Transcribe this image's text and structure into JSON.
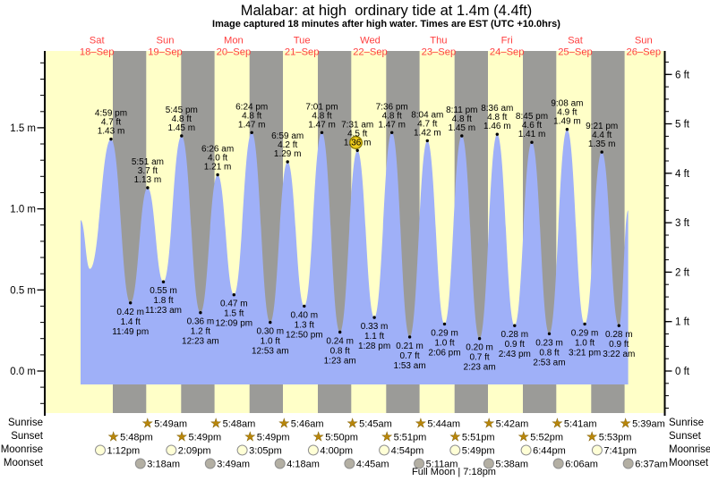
{
  "title": "Malabar: at high  ordinary tide at 1.4m (4.4ft)",
  "subtitle": "Image captured 18 minutes after high water. Times are EST (UTC +10.0hrs)",
  "colors": {
    "day_bg": "#ffffc8",
    "night_bg": "#9b9b98",
    "tide_fill": "#9fb0f8",
    "day_label": "#ff4040",
    "axis": "#000000",
    "star": "#b8860b",
    "star_outline": "#7a5a00",
    "moonrise_fill": "#ffffd6",
    "moonset_fill": "#b3afa3",
    "moon_stroke": "#8f8f8f",
    "marker_fill": "#f0cd1e",
    "marker_stroke": "#8e7d00"
  },
  "chart_data": {
    "type": "area",
    "title": "Malabar: at high  ordinary tide at 1.4m (4.4ft)",
    "x_days": [
      {
        "dow": "Sat",
        "date": "18–Sep"
      },
      {
        "dow": "Sun",
        "date": "19–Sep"
      },
      {
        "dow": "Mon",
        "date": "20–Sep"
      },
      {
        "dow": "Tue",
        "date": "21–Sep"
      },
      {
        "dow": "Wed",
        "date": "22–Sep"
      },
      {
        "dow": "Thu",
        "date": "23–Sep"
      },
      {
        "dow": "Fri",
        "date": "24–Sep"
      },
      {
        "dow": "Sat",
        "date": "25–Sep"
      },
      {
        "dow": "Sun",
        "date": "26–Sep"
      }
    ],
    "yticks_m": [
      0.0,
      0.5,
      1.0,
      1.5
    ],
    "yticks_ft": [
      0,
      1,
      2,
      3,
      4,
      5,
      6
    ],
    "ylim_m": [
      -0.26,
      1.97
    ],
    "grid": false,
    "tides": [
      {
        "day": 0,
        "time": "4:59 pm",
        "ft": "4.7 ft",
        "m": "1.43 m",
        "height_m": 1.43,
        "type": "high"
      },
      {
        "day": 0,
        "time": "11:49 pm",
        "ft": "1.4 ft",
        "m": "0.42 m",
        "height_m": 0.42,
        "type": "low"
      },
      {
        "day": 1,
        "time": "5:51 am",
        "ft": "3.7 ft",
        "m": "1.13 m",
        "height_m": 1.13,
        "type": "high"
      },
      {
        "day": 1,
        "time": "11:23 am",
        "ft": "1.8 ft",
        "m": "0.55 m",
        "height_m": 0.55,
        "type": "low"
      },
      {
        "day": 1,
        "time": "5:45 pm",
        "ft": "4.8 ft",
        "m": "1.45 m",
        "height_m": 1.45,
        "type": "high"
      },
      {
        "day": 2,
        "time": "12:23 am",
        "ft": "1.2 ft",
        "m": "0.36 m",
        "height_m": 0.36,
        "type": "low"
      },
      {
        "day": 2,
        "time": "6:26 am",
        "ft": "4.0 ft",
        "m": "1.21 m",
        "height_m": 1.21,
        "type": "high"
      },
      {
        "day": 2,
        "time": "12:09 pm",
        "ft": "1.5 ft",
        "m": "0.47 m",
        "height_m": 0.47,
        "type": "low"
      },
      {
        "day": 2,
        "time": "6:24 pm",
        "ft": "4.8 ft",
        "m": "1.47 m",
        "height_m": 1.47,
        "type": "high"
      },
      {
        "day": 3,
        "time": "12:53 am",
        "ft": "1.0 ft",
        "m": "0.30 m",
        "height_m": 0.3,
        "type": "low"
      },
      {
        "day": 3,
        "time": "6:59 am",
        "ft": "4.2 ft",
        "m": "1.29 m",
        "height_m": 1.29,
        "type": "high"
      },
      {
        "day": 3,
        "time": "12:50 pm",
        "ft": "1.3 ft",
        "m": "0.40 m",
        "height_m": 0.4,
        "type": "low"
      },
      {
        "day": 3,
        "time": "7:01 pm",
        "ft": "4.8 ft",
        "m": "1.47 m",
        "height_m": 1.47,
        "type": "high"
      },
      {
        "day": 4,
        "time": "1:23 am",
        "ft": "0.8 ft",
        "m": "0.24 m",
        "height_m": 0.24,
        "type": "low"
      },
      {
        "day": 4,
        "time": "7:31 am",
        "ft": "4.5 ft",
        "m": "1.36 m",
        "height_m": 1.36,
        "type": "high",
        "current": true
      },
      {
        "day": 4,
        "time": "1:28 pm",
        "ft": "1.1 ft",
        "m": "0.33 m",
        "height_m": 0.33,
        "type": "low"
      },
      {
        "day": 4,
        "time": "7:36 pm",
        "ft": "4.8 ft",
        "m": "1.47 m",
        "height_m": 1.47,
        "type": "high"
      },
      {
        "day": 5,
        "time": "1:53 am",
        "ft": "0.7 ft",
        "m": "0.21 m",
        "height_m": 0.21,
        "type": "low"
      },
      {
        "day": 5,
        "time": "8:04 am",
        "ft": "4.7 ft",
        "m": "1.42 m",
        "height_m": 1.42,
        "type": "high"
      },
      {
        "day": 5,
        "time": "2:06 pm",
        "ft": "1.0 ft",
        "m": "0.29 m",
        "height_m": 0.29,
        "type": "low"
      },
      {
        "day": 5,
        "time": "8:11 pm",
        "ft": "4.8 ft",
        "m": "1.45 m",
        "height_m": 1.45,
        "type": "high"
      },
      {
        "day": 6,
        "time": "2:23 am",
        "ft": "0.7 ft",
        "m": "0.20 m",
        "height_m": 0.2,
        "type": "low"
      },
      {
        "day": 6,
        "time": "8:36 am",
        "ft": "4.8 ft",
        "m": "1.46 m",
        "height_m": 1.46,
        "type": "high"
      },
      {
        "day": 6,
        "time": "2:43 pm",
        "ft": "0.9 ft",
        "m": "0.28 m",
        "height_m": 0.28,
        "type": "low"
      },
      {
        "day": 6,
        "time": "8:45 pm",
        "ft": "4.6 ft",
        "m": "1.41 m",
        "height_m": 1.41,
        "type": "high"
      },
      {
        "day": 7,
        "time": "2:53 am",
        "ft": "0.8 ft",
        "m": "0.23 m",
        "height_m": 0.23,
        "type": "low"
      },
      {
        "day": 7,
        "time": "9:08 am",
        "ft": "4.9 ft",
        "m": "1.49 m",
        "height_m": 1.49,
        "type": "high"
      },
      {
        "day": 7,
        "time": "3:21 pm",
        "ft": "1.0 ft",
        "m": "0.29 m",
        "height_m": 0.29,
        "type": "low"
      },
      {
        "day": 7,
        "time": "9:21 pm",
        "ft": "4.4 ft",
        "m": "1.35 m",
        "height_m": 1.35,
        "type": "high"
      },
      {
        "day": 8,
        "time": "3:22 am",
        "ft": "0.9 ft",
        "m": "0.28 m",
        "height_m": 0.28,
        "type": "low"
      }
    ],
    "curve_edge_points": [
      {
        "day": 0,
        "hour": 6.3,
        "height_m": 0.93
      },
      {
        "day": 0,
        "hour": 9.6,
        "height_m": 0.63
      },
      {
        "day": 8,
        "hour": 6.6,
        "height_m": 0.99
      }
    ]
  },
  "almanac": {
    "rows": [
      {
        "label": "Sunrise",
        "icon": "sun-star",
        "entries": [
          {
            "day": 1,
            "time": "5:49am"
          },
          {
            "day": 2,
            "time": "5:48am"
          },
          {
            "day": 3,
            "time": "5:46am"
          },
          {
            "day": 4,
            "time": "5:45am"
          },
          {
            "day": 5,
            "time": "5:44am"
          },
          {
            "day": 6,
            "time": "5:42am"
          },
          {
            "day": 7,
            "time": "5:41am"
          },
          {
            "day": 8,
            "time": "5:39am"
          }
        ]
      },
      {
        "label": "Sunset",
        "icon": "sun-star",
        "entries": [
          {
            "day": 0,
            "time": "5:48pm"
          },
          {
            "day": 1,
            "time": "5:49pm"
          },
          {
            "day": 2,
            "time": "5:49pm"
          },
          {
            "day": 3,
            "time": "5:50pm"
          },
          {
            "day": 4,
            "time": "5:51pm"
          },
          {
            "day": 5,
            "time": "5:51pm"
          },
          {
            "day": 6,
            "time": "5:52pm"
          },
          {
            "day": 7,
            "time": "5:53pm"
          }
        ]
      },
      {
        "label": "Moonrise",
        "icon": "moon-light",
        "entries": [
          {
            "day": 0,
            "time": "1:12pm"
          },
          {
            "day": 1,
            "time": "2:09pm"
          },
          {
            "day": 2,
            "time": "3:05pm"
          },
          {
            "day": 3,
            "time": "4:00pm"
          },
          {
            "day": 4,
            "time": "4:54pm"
          },
          {
            "day": 5,
            "time": "5:49pm"
          },
          {
            "day": 6,
            "time": "6:44pm"
          },
          {
            "day": 7,
            "time": "7:41pm"
          }
        ]
      },
      {
        "label": "Moonset",
        "icon": "moon-dark",
        "entries": [
          {
            "day": 1,
            "time": "3:18am"
          },
          {
            "day": 2,
            "time": "3:49am"
          },
          {
            "day": 3,
            "time": "4:18am"
          },
          {
            "day": 4,
            "time": "4:45am"
          },
          {
            "day": 5,
            "time": "5:11am"
          },
          {
            "day": 6,
            "time": "5:38am"
          },
          {
            "day": 7,
            "time": "6:06am"
          },
          {
            "day": 8,
            "time": "6:37am"
          }
        ]
      }
    ],
    "footnote": "Full Moon | 7:18pm"
  }
}
